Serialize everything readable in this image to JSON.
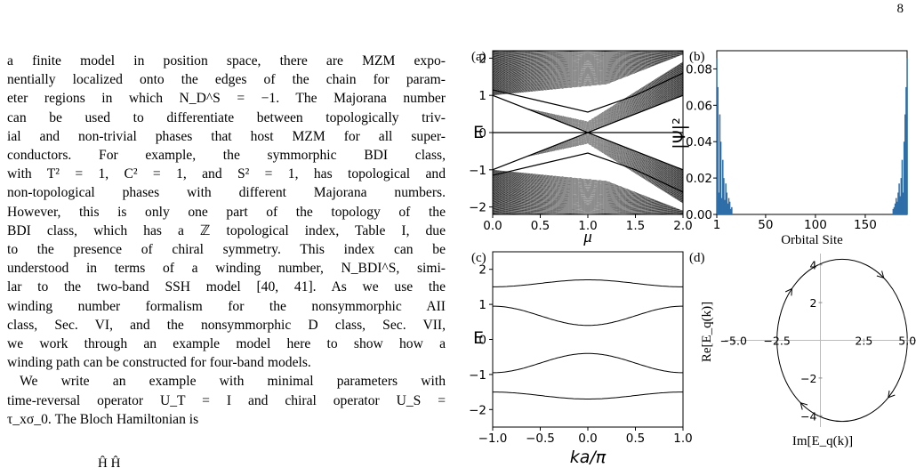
{
  "page_number": "8",
  "paragraph1_lines": [
    "a finite model in position space, there are MZM expo-",
    "nentially localized onto the edges of the chain for param-",
    "eter regions in which N_D^S = −1. The Majorana number",
    "can be used to differentiate between topologically triv-",
    "ial and non-trivial phases that host MZM for all super-",
    "conductors. For example, the symmorphic BDI class,",
    "with T² = 1, C² = 1, and S² = 1, has topological and",
    "non-topological phases with different Majorana numbers.",
    "However, this is only one part of the topology of the",
    "BDI class, which has a ℤ topological index, Table I, due",
    "to the presence of chiral symmetry. This index can be",
    "understood in terms of a winding number, N_BDI^S, simi-",
    "lar to the two-band SSH model [40, 41]. As we use the",
    "winding number formalism for the nonsymmorphic AII",
    "class, Sec. VI, and the nonsymmorphic D class, Sec. VII,",
    "we work through an example model here to show how a",
    "winding path can be constructed for four-band models."
  ],
  "paragraph2_lines": [
    "We write an example with minimal parameters with",
    "time-reversal operator U_T = I and chiral operator U_S =",
    "τ_xσ_0. The Bloch Hamiltonian is"
  ],
  "equation_fragment": "Ĥ   Ĥ",
  "figure": {
    "panel_labels": [
      "(a)",
      "(b)",
      "(c)",
      "(d)"
    ],
    "panel_a": {
      "ylabel": "E",
      "xlabel": "μ",
      "yticks": [
        "−2",
        "−1",
        "0",
        "1",
        "2"
      ],
      "xticks": [
        "0.0",
        "0.5",
        "1.0",
        "1.5",
        "2.0"
      ]
    },
    "panel_b": {
      "ylabel": "|Ψ|²",
      "xlabel": "Orbital Site",
      "yticks": [
        "0.00",
        "0.02",
        "0.04",
        "0.06",
        "0.08"
      ],
      "xticks": [
        "1",
        "50",
        "100",
        "150"
      ],
      "bar_color": "#2e6ea8"
    },
    "panel_c": {
      "ylabel": "E",
      "xlabel": "ka/π",
      "yticks": [
        "−2",
        "−1",
        "0",
        "1",
        "2"
      ],
      "xticks": [
        "−1.0",
        "−0.5",
        "0.0",
        "0.5",
        "1.0"
      ]
    },
    "panel_d": {
      "ylabel": "Re[E_q(k)]",
      "xlabel": "Im[E_q(k)]",
      "xticks": [
        "−5.0",
        "−2.5",
        "2.5",
        "5.0"
      ],
      "yticks": [
        "4",
        "2",
        "−2",
        "−4"
      ]
    }
  },
  "chart_data": [
    {
      "type": "line",
      "panel": "(a)",
      "xlabel": "μ",
      "ylabel": "E",
      "xlim": [
        0,
        2
      ],
      "ylim": [
        -2.2,
        2.2
      ],
      "x": [
        0,
        0.5,
        1.0,
        1.5,
        2.0
      ],
      "series": [
        {
          "values": [
            1.15,
            0.85,
            0.55,
            1.0,
            1.6
          ]
        },
        {
          "values": [
            1.0,
            0.5,
            0.0,
            0.5,
            1.0
          ]
        },
        {
          "values": [
            0,
            0,
            0,
            0,
            0
          ]
        },
        {
          "values": [
            -1.0,
            -0.5,
            0.0,
            -0.5,
            -1.0
          ]
        },
        {
          "values": [
            -1.15,
            -0.85,
            -0.55,
            -1.0,
            -1.6
          ]
        }
      ]
    },
    {
      "type": "bar",
      "panel": "(b)",
      "xlabel": "Orbital Site",
      "ylabel": "|Ψ|²",
      "xlim": [
        1,
        192
      ],
      "ylim": [
        0,
        0.09
      ],
      "x": [
        1,
        2,
        3,
        4,
        5,
        6,
        7,
        8,
        9,
        10,
        11,
        12,
        13,
        14,
        15,
        16,
        178,
        179,
        180,
        181,
        182,
        183,
        184,
        185,
        186,
        187,
        188,
        189,
        190,
        191,
        192
      ],
      "values": [
        0.086,
        0.07,
        0.012,
        0.055,
        0.04,
        0.009,
        0.03,
        0.02,
        0.008,
        0.017,
        0.012,
        0.006,
        0.009,
        0.007,
        0.003,
        0.004,
        0.003,
        0.004,
        0.006,
        0.009,
        0.007,
        0.012,
        0.017,
        0.01,
        0.02,
        0.03,
        0.012,
        0.04,
        0.055,
        0.07,
        0.086
      ]
    },
    {
      "type": "line",
      "panel": "(c)",
      "xlabel": "ka/π",
      "ylabel": "E",
      "xlim": [
        -1,
        1
      ],
      "ylim": [
        -2.5,
        2.5
      ],
      "x": [
        -1.0,
        -0.5,
        0.0,
        0.5,
        1.0
      ],
      "series": [
        {
          "values": [
            1.5,
            1.62,
            1.7,
            1.62,
            1.5
          ]
        },
        {
          "values": [
            0.95,
            0.7,
            0.4,
            0.7,
            0.95
          ]
        },
        {
          "values": [
            -0.95,
            -0.7,
            -0.4,
            -0.7,
            -0.95
          ]
        },
        {
          "values": [
            -1.5,
            -1.62,
            -1.7,
            -1.62,
            -1.5
          ]
        }
      ]
    },
    {
      "type": "line",
      "panel": "(d)",
      "xlabel": "Im[E_q(k)]",
      "ylabel": "Re[E_q(k)]",
      "xlim": [
        -5.5,
        5.5
      ],
      "ylim": [
        -4.6,
        4.6
      ],
      "series": [
        {
          "values": [
            [
              -2.5,
              0
            ],
            [
              0,
              4.3
            ],
            [
              5.0,
              0
            ],
            [
              0,
              -4.3
            ]
          ]
        }
      ]
    }
  ]
}
